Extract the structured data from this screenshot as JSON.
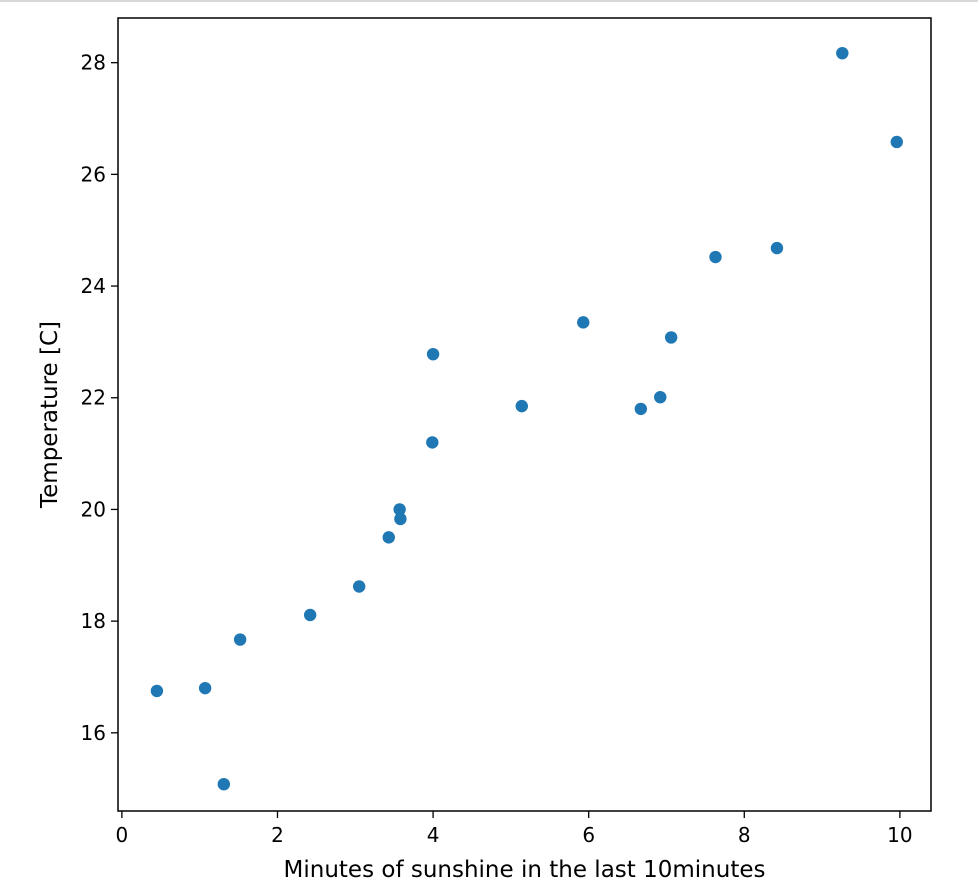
{
  "chart_data": {
    "type": "scatter",
    "title": "",
    "xlabel": "Minutes of sunshine in the last 10minutes",
    "ylabel": "Temperature [C]",
    "xlim": [
      -0.05,
      10.4
    ],
    "ylim": [
      14.6,
      28.8
    ],
    "xticks": [
      0,
      2,
      4,
      6,
      8,
      10
    ],
    "yticks": [
      16,
      18,
      20,
      22,
      24,
      26,
      28
    ],
    "xtick_labels": [
      "0",
      "2",
      "4",
      "6",
      "8",
      "10"
    ],
    "ytick_labels": [
      "16",
      "18",
      "20",
      "22",
      "24",
      "26",
      "28"
    ],
    "grid": false,
    "legend": "none",
    "marker_color": "#1f77b4",
    "points": [
      {
        "x": 0.45,
        "y": 16.75
      },
      {
        "x": 1.07,
        "y": 16.8
      },
      {
        "x": 1.31,
        "y": 15.08
      },
      {
        "x": 1.52,
        "y": 17.67
      },
      {
        "x": 2.42,
        "y": 18.11
      },
      {
        "x": 3.05,
        "y": 18.62
      },
      {
        "x": 3.43,
        "y": 19.5
      },
      {
        "x": 3.57,
        "y": 20.0
      },
      {
        "x": 3.58,
        "y": 19.83
      },
      {
        "x": 3.99,
        "y": 21.2
      },
      {
        "x": 4.0,
        "y": 22.78
      },
      {
        "x": 5.14,
        "y": 21.85
      },
      {
        "x": 5.93,
        "y": 23.35
      },
      {
        "x": 6.67,
        "y": 21.8
      },
      {
        "x": 6.92,
        "y": 22.01
      },
      {
        "x": 7.06,
        "y": 23.08
      },
      {
        "x": 7.63,
        "y": 24.52
      },
      {
        "x": 8.42,
        "y": 24.68
      },
      {
        "x": 9.26,
        "y": 28.17
      },
      {
        "x": 9.96,
        "y": 26.58
      }
    ]
  }
}
